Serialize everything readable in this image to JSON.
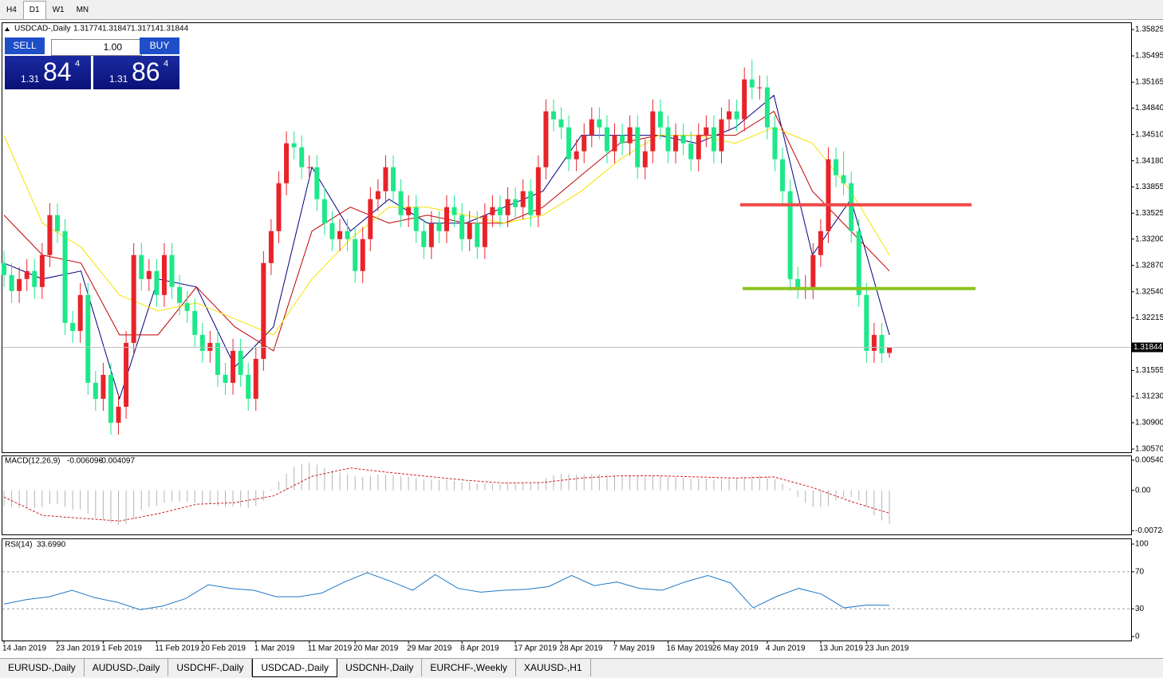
{
  "toolbar": {
    "timeframes": [
      "H4",
      "D1",
      "W1",
      "MN"
    ]
  },
  "trade_panel": {
    "sell": "SELL",
    "buy": "BUY",
    "lot": "1.00",
    "bid": {
      "big": "1.31",
      "main": "84",
      "small": "4"
    },
    "ask": {
      "big": "1.31",
      "main": "86",
      "small": "4"
    }
  },
  "chart_data": [
    {
      "type": "candlestick",
      "symbol": "USDCAD-,Daily",
      "categories": [
        "14 Jan 2019",
        null,
        null,
        null,
        null,
        null,
        null,
        "23 Jan 2019",
        null,
        null,
        null,
        null,
        null,
        "1 Feb 2019",
        null,
        null,
        null,
        null,
        null,
        null,
        "11 Feb 2019",
        null,
        null,
        null,
        null,
        null,
        "20 Feb 2019",
        null,
        null,
        null,
        null,
        null,
        null,
        "1 Mar 2019",
        null,
        null,
        null,
        null,
        null,
        null,
        "11 Mar 2019",
        null,
        null,
        null,
        null,
        null,
        "20 Mar 2019",
        null,
        null,
        null,
        null,
        null,
        null,
        "29 Mar 2019",
        null,
        null,
        null,
        null,
        null,
        null,
        "8 Apr 2019",
        null,
        null,
        null,
        null,
        null,
        null,
        "17 Apr 2019",
        null,
        null,
        null,
        null,
        null,
        "28 Apr 2019",
        null,
        null,
        null,
        null,
        null,
        null,
        "7 May 2019",
        null,
        null,
        null,
        null,
        null,
        null,
        "16 May 2019",
        null,
        null,
        null,
        null,
        null,
        "26 May 2019",
        null,
        null,
        null,
        null,
        null,
        null,
        "4 Jun 2019",
        null,
        null,
        null,
        null,
        null,
        null,
        "13 Jun 2019",
        null,
        null,
        null,
        null,
        null,
        "23 Jun 2019",
        null,
        null,
        null
      ],
      "open": [
        1.329,
        1.3275,
        1.3255,
        1.327,
        1.328,
        1.326,
        1.33,
        1.335,
        1.333,
        1.3215,
        1.3205,
        1.325,
        1.314,
        1.312,
        1.315,
        1.309,
        1.311,
        1.319,
        1.33,
        1.327,
        1.328,
        1.325,
        1.33,
        1.326,
        1.324,
        1.323,
        1.32,
        1.318,
        1.319,
        1.315,
        1.314,
        1.318,
        1.315,
        1.312,
        1.317,
        1.329,
        1.333,
        1.339,
        1.344,
        1.3435,
        1.341,
        1.341,
        1.337,
        1.334,
        1.332,
        1.333,
        1.332,
        1.328,
        1.332,
        1.337,
        1.338,
        1.341,
        1.338,
        1.335,
        1.336,
        1.333,
        1.331,
        1.334,
        1.333,
        1.336,
        1.335,
        1.332,
        1.334,
        1.331,
        1.335,
        1.336,
        1.335,
        1.337,
        1.336,
        1.338,
        1.335,
        1.341,
        1.348,
        1.347,
        1.346,
        1.342,
        1.343,
        1.345,
        1.347,
        1.346,
        1.343,
        1.345,
        1.344,
        1.346,
        1.341,
        1.343,
        1.348,
        1.346,
        1.343,
        1.345,
        1.344,
        1.342,
        1.345,
        1.346,
        1.343,
        1.347,
        1.348,
        1.347,
        1.352,
        1.351,
        1.351,
        1.346,
        1.342,
        1.338,
        1.327,
        1.326,
        1.326,
        1.33,
        1.333,
        1.342,
        1.34,
        1.339,
        1.333,
        1.325,
        1.318,
        1.32,
        1.31774
      ],
      "high": [
        1.3305,
        1.329,
        1.3285,
        1.3295,
        1.3295,
        1.3315,
        1.3365,
        1.3365,
        1.3345,
        1.323,
        1.3265,
        1.3265,
        1.3155,
        1.3165,
        1.3165,
        1.3125,
        1.3205,
        1.3315,
        1.3315,
        1.3295,
        1.3295,
        1.3315,
        1.3315,
        1.3275,
        1.3255,
        1.3245,
        1.3215,
        1.3205,
        1.3205,
        1.3165,
        1.3195,
        1.3195,
        1.3165,
        1.3185,
        1.3305,
        1.3345,
        1.3405,
        1.3455,
        1.3455,
        1.345,
        1.3425,
        1.3425,
        1.3385,
        1.3355,
        1.3345,
        1.3345,
        1.3335,
        1.3335,
        1.3385,
        1.3395,
        1.3425,
        1.3425,
        1.3395,
        1.3375,
        1.3375,
        1.3345,
        1.3355,
        1.3355,
        1.3375,
        1.3375,
        1.3365,
        1.3355,
        1.3355,
        1.3365,
        1.3375,
        1.3375,
        1.3385,
        1.3385,
        1.3395,
        1.3395,
        1.3425,
        1.3495,
        1.3495,
        1.3485,
        1.3475,
        1.3445,
        1.3465,
        1.3485,
        1.3485,
        1.3475,
        1.3465,
        1.3465,
        1.3475,
        1.3475,
        1.3445,
        1.3495,
        1.3495,
        1.3475,
        1.3465,
        1.3465,
        1.3455,
        1.3465,
        1.3475,
        1.3475,
        1.3485,
        1.3495,
        1.3495,
        1.3535,
        1.3545,
        1.3525,
        1.3525,
        1.3475,
        1.3435,
        1.3395,
        1.3285,
        1.3275,
        1.3315,
        1.3345,
        1.3435,
        1.3435,
        1.343,
        1.3405,
        1.3345,
        1.3265,
        1.3215,
        1.3215,
        1.31847
      ],
      "low": [
        1.326,
        1.324,
        1.324,
        1.3255,
        1.3245,
        1.3245,
        1.3285,
        1.3315,
        1.32,
        1.319,
        1.319,
        1.3125,
        1.3105,
        1.3105,
        1.3075,
        1.3075,
        1.3095,
        1.3175,
        1.3255,
        1.3255,
        1.3235,
        1.3235,
        1.3245,
        1.3225,
        1.3215,
        1.3185,
        1.3165,
        1.3165,
        1.3135,
        1.3125,
        1.3125,
        1.3135,
        1.3105,
        1.3105,
        1.3155,
        1.3275,
        1.3315,
        1.3375,
        1.342,
        1.3395,
        1.3395,
        1.3355,
        1.3325,
        1.3305,
        1.3305,
        1.3305,
        1.3265,
        1.3265,
        1.3305,
        1.3355,
        1.3365,
        1.3365,
        1.3335,
        1.3335,
        1.3315,
        1.3295,
        1.3295,
        1.3315,
        1.3315,
        1.3335,
        1.3305,
        1.3305,
        1.3295,
        1.3295,
        1.3335,
        1.3335,
        1.3335,
        1.3345,
        1.3345,
        1.3335,
        1.3335,
        1.3395,
        1.3455,
        1.3445,
        1.3405,
        1.3405,
        1.3415,
        1.3435,
        1.3445,
        1.3415,
        1.3415,
        1.3425,
        1.3425,
        1.3395,
        1.3395,
        1.3415,
        1.3445,
        1.3415,
        1.3415,
        1.3425,
        1.3405,
        1.3405,
        1.3435,
        1.3415,
        1.3415,
        1.3455,
        1.3455,
        1.3455,
        1.3495,
        1.3495,
        1.3445,
        1.3405,
        1.3365,
        1.3255,
        1.3245,
        1.3245,
        1.3245,
        1.3285,
        1.3315,
        1.3385,
        1.3375,
        1.3315,
        1.3235,
        1.3165,
        1.3165,
        1.3165,
        1.31714
      ],
      "close": [
        1.3275,
        1.3255,
        1.327,
        1.328,
        1.326,
        1.33,
        1.335,
        1.333,
        1.3215,
        1.3205,
        1.325,
        1.314,
        1.312,
        1.315,
        1.309,
        1.311,
        1.319,
        1.33,
        1.327,
        1.328,
        1.325,
        1.33,
        1.326,
        1.324,
        1.323,
        1.32,
        1.318,
        1.319,
        1.315,
        1.314,
        1.318,
        1.315,
        1.312,
        1.317,
        1.329,
        1.333,
        1.339,
        1.344,
        1.3435,
        1.341,
        1.341,
        1.337,
        1.334,
        1.332,
        1.333,
        1.332,
        1.328,
        1.332,
        1.337,
        1.338,
        1.341,
        1.338,
        1.335,
        1.336,
        1.333,
        1.331,
        1.334,
        1.333,
        1.336,
        1.335,
        1.332,
        1.334,
        1.331,
        1.335,
        1.336,
        1.335,
        1.337,
        1.336,
        1.338,
        1.335,
        1.341,
        1.348,
        1.347,
        1.346,
        1.342,
        1.343,
        1.345,
        1.347,
        1.346,
        1.343,
        1.345,
        1.344,
        1.346,
        1.341,
        1.343,
        1.348,
        1.346,
        1.343,
        1.345,
        1.344,
        1.342,
        1.345,
        1.346,
        1.343,
        1.347,
        1.348,
        1.347,
        1.352,
        1.351,
        1.351,
        1.346,
        1.342,
        1.338,
        1.327,
        1.326,
        1.326,
        1.33,
        1.333,
        1.342,
        1.34,
        1.339,
        1.333,
        1.325,
        1.318,
        1.32,
        1.3177,
        1.31844
      ],
      "up_color": "#e8232a",
      "down_color": "#1de88a",
      "moving_averages": [
        {
          "color": "#000080",
          "values": [
            1.329,
            1.327,
            1.328,
            1.312,
            1.327,
            1.326,
            1.316,
            1.321,
            1.341,
            1.333,
            1.337,
            1.334,
            1.334,
            1.336,
            1.338,
            1.345,
            1.345,
            1.345,
            1.344,
            1.346,
            1.35,
            1.33,
            1.337,
            1.32
          ]
        },
        {
          "color": "#c00000",
          "values": [
            1.335,
            1.33,
            1.329,
            1.32,
            1.32,
            1.326,
            1.321,
            1.318,
            1.333,
            1.336,
            1.334,
            1.335,
            1.334,
            1.334,
            1.336,
            1.34,
            1.344,
            1.345,
            1.345,
            1.345,
            1.348,
            1.338,
            1.333,
            1.328
          ]
        },
        {
          "color": "#f5e400",
          "values": [
            1.345,
            1.334,
            1.331,
            1.325,
            1.323,
            1.324,
            1.322,
            1.32,
            1.327,
            1.332,
            1.336,
            1.336,
            1.335,
            1.334,
            1.335,
            1.338,
            1.342,
            1.345,
            1.345,
            1.344,
            1.346,
            1.344,
            1.338,
            1.33
          ]
        }
      ],
      "hlines": [
        {
          "value": 1.3363,
          "color": "#f04848"
        },
        {
          "value": 1.3258,
          "color": "#8cc420"
        }
      ],
      "ylim": [
        1.3053,
        1.35905
      ],
      "yticks": [
        1.35825,
        1.35495,
        1.35165,
        {
          "value": 1.3484,
          "label": "1.34840"
        },
        {
          "value": 1.3451,
          "label": "1.34510"
        },
        {
          "value": 1.3418,
          "label": "1.34180"
        },
        1.33855,
        1.33525,
        {
          "value": 1.332,
          "label": "1.33200"
        },
        {
          "value": 1.3287,
          "label": "1.32870"
        },
        {
          "value": 1.3254,
          "label": "1.32540"
        },
        1.32215,
        1.31555,
        {
          "value": 1.3123,
          "label": "1.31230"
        },
        {
          "value": 1.309,
          "label": "1.30900"
        },
        {
          "value": 1.3057,
          "label": "1.30570"
        }
      ]
    },
    {
      "type": "macd",
      "label": "MACD(12,26,9)",
      "histogram": [
        -0.0028,
        -0.003,
        -0.0031,
        -0.0031,
        -0.0032,
        -0.003,
        -0.0025,
        -0.0024,
        -0.003,
        -0.0035,
        -0.0034,
        -0.0042,
        -0.005,
        -0.0052,
        -0.0058,
        -0.0062,
        -0.006,
        -0.005,
        -0.0035,
        -0.003,
        -0.0028,
        -0.0022,
        -0.002,
        -0.002,
        -0.0021,
        -0.0023,
        -0.0025,
        -0.0025,
        -0.0028,
        -0.003,
        -0.0029,
        -0.003,
        -0.0032,
        -0.0028,
        -0.0018,
        0.0002,
        0.0015,
        0.003,
        0.0042,
        0.0048,
        0.0049,
        0.0046,
        0.004,
        0.0035,
        0.0032,
        0.0029,
        0.0025,
        0.0024,
        0.0026,
        0.0028,
        0.0028,
        0.0027,
        0.0025,
        0.0024,
        0.0022,
        0.002,
        0.0019,
        0.0018,
        0.0018,
        0.0017,
        0.0015,
        0.0014,
        0.0012,
        0.0012,
        0.0011,
        0.0011,
        0.0012,
        0.0012,
        0.0013,
        0.0012,
        0.0015,
        0.0022,
        0.0027,
        0.003,
        0.0029,
        0.0028,
        0.0028,
        0.0029,
        0.0029,
        0.0028,
        0.0027,
        0.0027,
        0.0027,
        0.0025,
        0.0024,
        0.0026,
        0.0026,
        0.0024,
        0.0024,
        0.0023,
        0.0021,
        0.0021,
        0.0021,
        0.0019,
        0.002,
        0.0021,
        0.0021,
        0.0024,
        0.0026,
        0.0026,
        0.0025,
        0.002,
        0.0012,
        0.0003,
        -0.0012,
        -0.0022,
        -0.003,
        -0.003,
        -0.0028,
        -0.0018,
        -0.0013,
        -0.0012,
        -0.0018,
        -0.003,
        -0.0045,
        -0.0054,
        -0.006096
      ],
      "signal": [
        -0.0012,
        -0.0045,
        -0.005,
        -0.0055,
        -0.0042,
        -0.0025,
        -0.0022,
        -0.001,
        0.0025,
        0.004,
        0.0032,
        0.0025,
        0.0018,
        0.0013,
        0.0014,
        0.0022,
        0.0026,
        0.0026,
        0.0024,
        0.0022,
        0.0024,
        0.0005,
        -0.002,
        -0.004097
      ],
      "histogram_color": "#b4b4b4",
      "signal_color": "#d02020",
      "ylim": [
        -0.0079,
        0.0061
      ],
      "yticks": [
        0.005402,
        {
          "value": 0,
          "label": "0.00"
        },
        -0.00724
      ]
    },
    {
      "type": "line",
      "label": "RSI(14)",
      "current_label": "33.6990",
      "values": [
        35,
        40,
        43,
        50,
        42,
        37,
        29,
        33,
        41,
        56,
        52,
        50,
        43,
        43,
        47,
        59,
        69,
        60,
        50,
        67,
        52,
        48,
        50,
        51,
        54,
        66,
        55,
        59,
        52,
        50,
        59,
        66,
        58,
        31,
        43,
        52,
        46,
        31,
        34,
        33.699
      ],
      "color": "#1e78c8",
      "levels": [
        70,
        30
      ],
      "ylim": [
        -4.3,
        105.2
      ],
      "yticks": [
        100,
        70,
        30,
        0
      ]
    }
  ],
  "tabs": [
    "EURUSD-,Daily",
    "AUDUSD-,Daily",
    "USDCHF-,Daily",
    "USDCAD-,Daily",
    "USDCNH-,Daily",
    "EURCHF-,Weekly",
    "XAUUSD-,H1"
  ],
  "active_tab": 3,
  "active_timeframe": 1
}
